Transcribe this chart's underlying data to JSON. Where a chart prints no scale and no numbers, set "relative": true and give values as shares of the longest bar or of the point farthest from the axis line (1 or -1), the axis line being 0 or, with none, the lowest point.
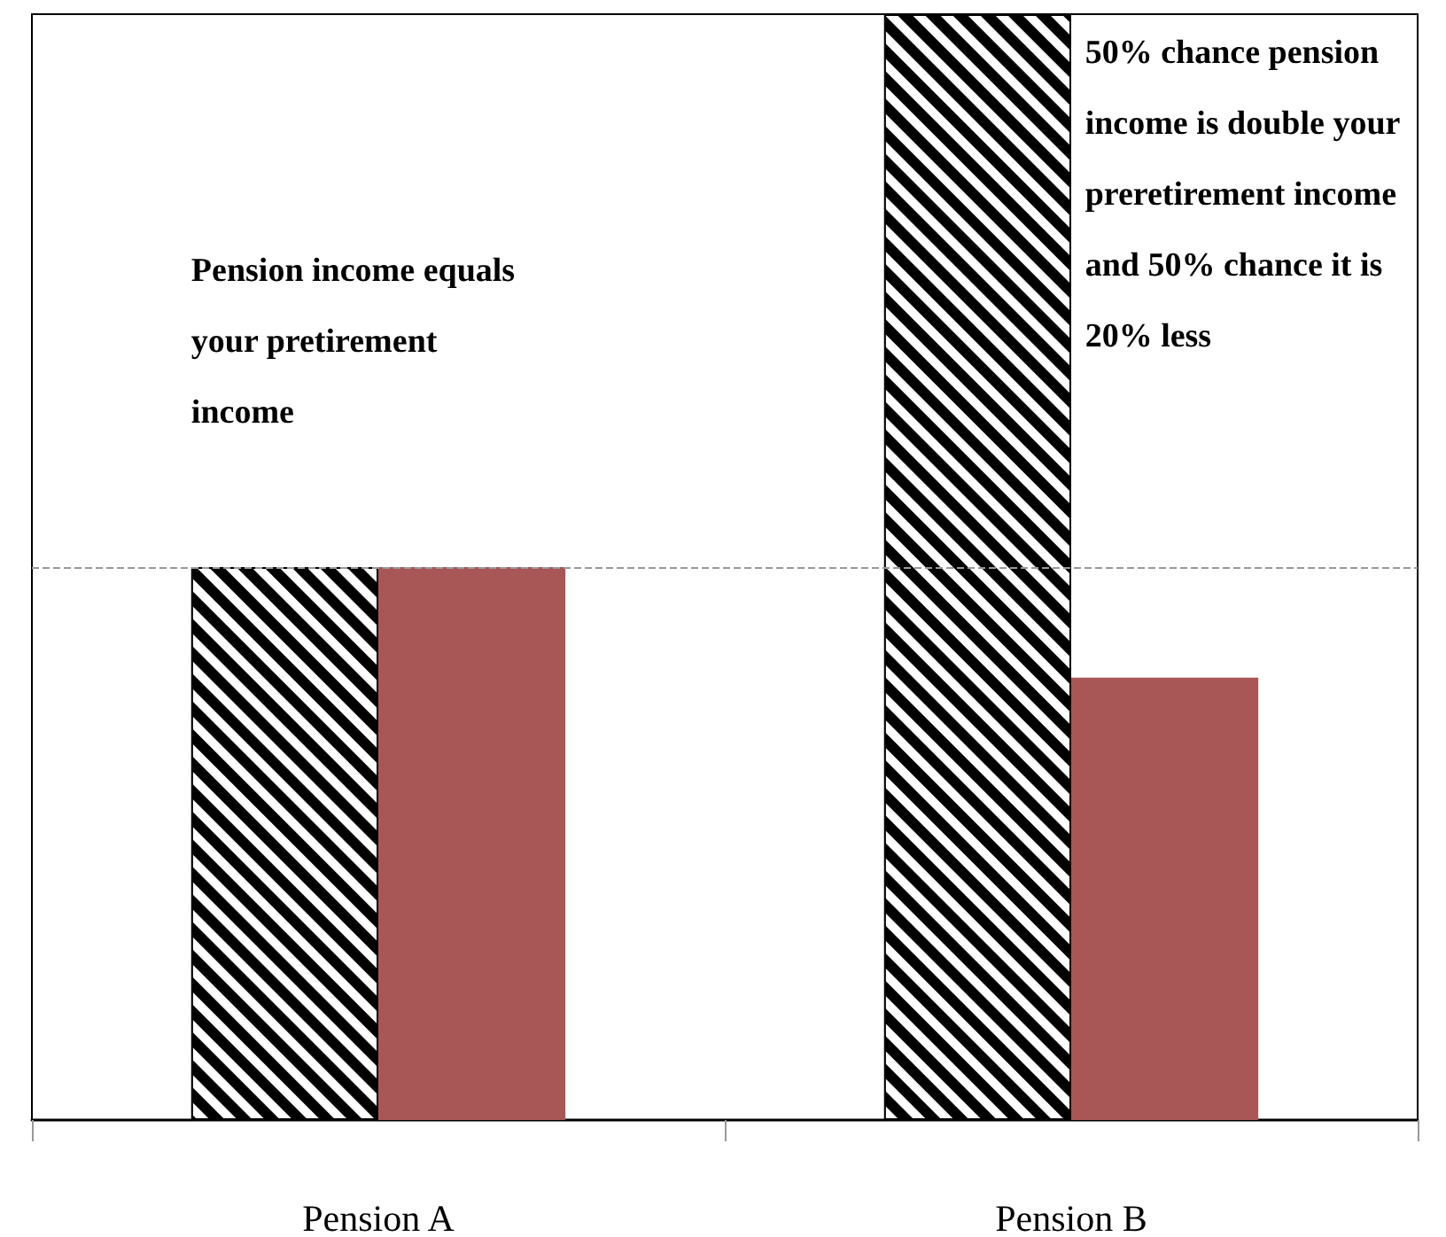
{
  "chart_data": {
    "type": "bar",
    "relative": true,
    "categories": [
      "Pension A",
      "Pension B"
    ],
    "series": [
      {
        "color": "#000000",
        "values": [
          0.5,
          1
        ]
      },
      {
        "color": "#a85656",
        "values": [
          0.5,
          0.4
        ]
      }
    ],
    "ref_lines": [
      {
        "axis": "y",
        "value": 0.5,
        "color": "#999999",
        "line_style": "dashed"
      }
    ],
    "annotations": [
      "Pension income equals your pretirement income",
      "50% chance pension income is double your preretirement income and 50% chance it is 20% less"
    ],
    "grid": false
  }
}
